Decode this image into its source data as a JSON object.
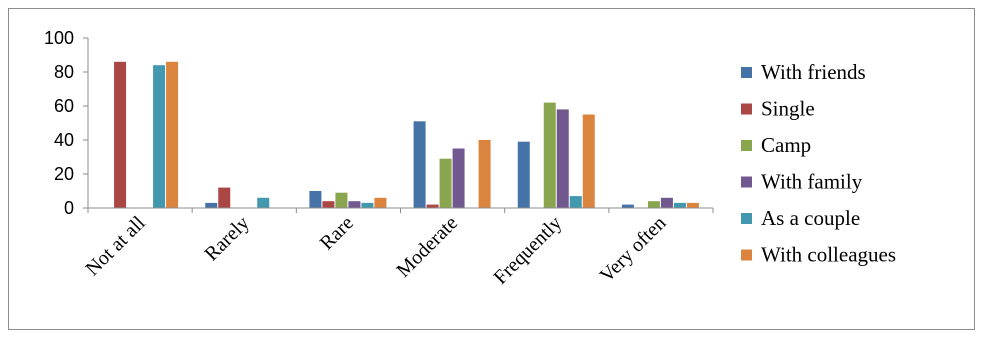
{
  "chart_data": {
    "type": "bar",
    "categories": [
      "Not at all",
      "Rarely",
      "Rare",
      "Moderate",
      "Frequently",
      "Very often"
    ],
    "series": [
      {
        "name": "With friends",
        "color": "#4572a7",
        "values": [
          0,
          3,
          10,
          51,
          39,
          2
        ]
      },
      {
        "name": "Single",
        "color": "#aa4643",
        "values": [
          86,
          12,
          4,
          2,
          0,
          0
        ]
      },
      {
        "name": "Camp",
        "color": "#89a54e",
        "values": [
          0,
          0,
          9,
          29,
          62,
          4
        ]
      },
      {
        "name": "With family",
        "color": "#71588f",
        "values": [
          0,
          0,
          4,
          35,
          58,
          6
        ]
      },
      {
        "name": "As a couple",
        "color": "#4198af",
        "values": [
          84,
          6,
          3,
          0,
          7,
          3
        ]
      },
      {
        "name": "With colleagues",
        "color": "#db843d",
        "values": [
          86,
          0,
          6,
          40,
          55,
          3
        ]
      }
    ],
    "y_ticks": [
      0,
      20,
      40,
      60,
      80,
      100
    ],
    "ylim": [
      0,
      100
    ],
    "grid": false,
    "legend_position": "right",
    "title": "",
    "xlabel": "",
    "ylabel": ""
  }
}
